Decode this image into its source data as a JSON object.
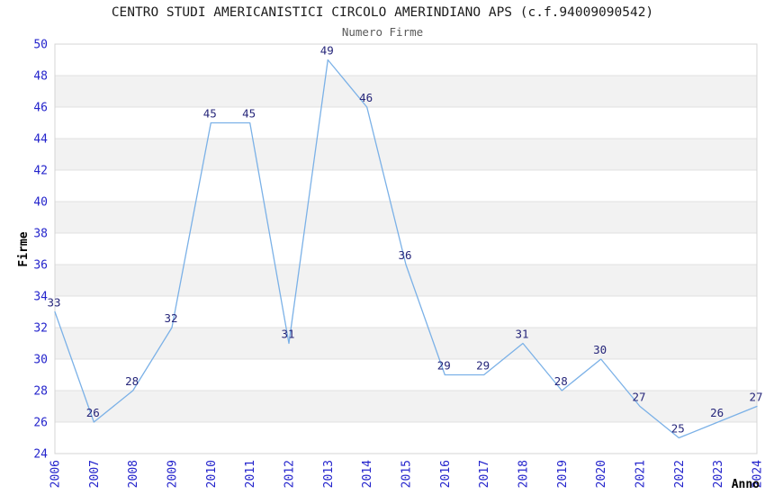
{
  "header": {
    "title": "CENTRO STUDI AMERICANISTICI CIRCOLO AMERINDIANO APS (c.f.94009090542)",
    "subtitle": "Numero Firme"
  },
  "chart_data": {
    "type": "line",
    "title": "CENTRO STUDI AMERICANISTICI CIRCOLO AMERINDIANO APS (c.f.94009090542)",
    "subtitle": "Numero Firme",
    "xlabel": "Anno",
    "ylabel": "Firme",
    "categories": [
      "2006",
      "2007",
      "2008",
      "2009",
      "2010",
      "2011",
      "2012",
      "2013",
      "2014",
      "2015",
      "2016",
      "2017",
      "2018",
      "2019",
      "2020",
      "2021",
      "2022",
      "2023",
      "2024"
    ],
    "series": [
      {
        "name": "Numero Firme",
        "values": [
          33,
          26,
          28,
          32,
          45,
          45,
          31,
          49,
          46,
          36,
          29,
          29,
          31,
          28,
          30,
          27,
          25,
          26,
          27
        ]
      }
    ],
    "ylim": [
      24,
      50
    ],
    "ytick_step": 2,
    "xtick_rotation_deg": 90,
    "grid": "alternating horizontal gray bands every 2 units, gridlines at even ticks",
    "legend": "none",
    "data_labels_visible": true,
    "markers": "none",
    "colors": {
      "line": "#7bb1e7",
      "data_label": "#26267a",
      "tick_label": "#2424cc",
      "band": "#f2f2f2",
      "gridline": "#e0e0e0",
      "plot_border": "#d4d4d4",
      "title": "#1c1c1c",
      "subtitle": "#5a5a5a",
      "axis_label": "#000000",
      "background": "#ffffff"
    }
  }
}
